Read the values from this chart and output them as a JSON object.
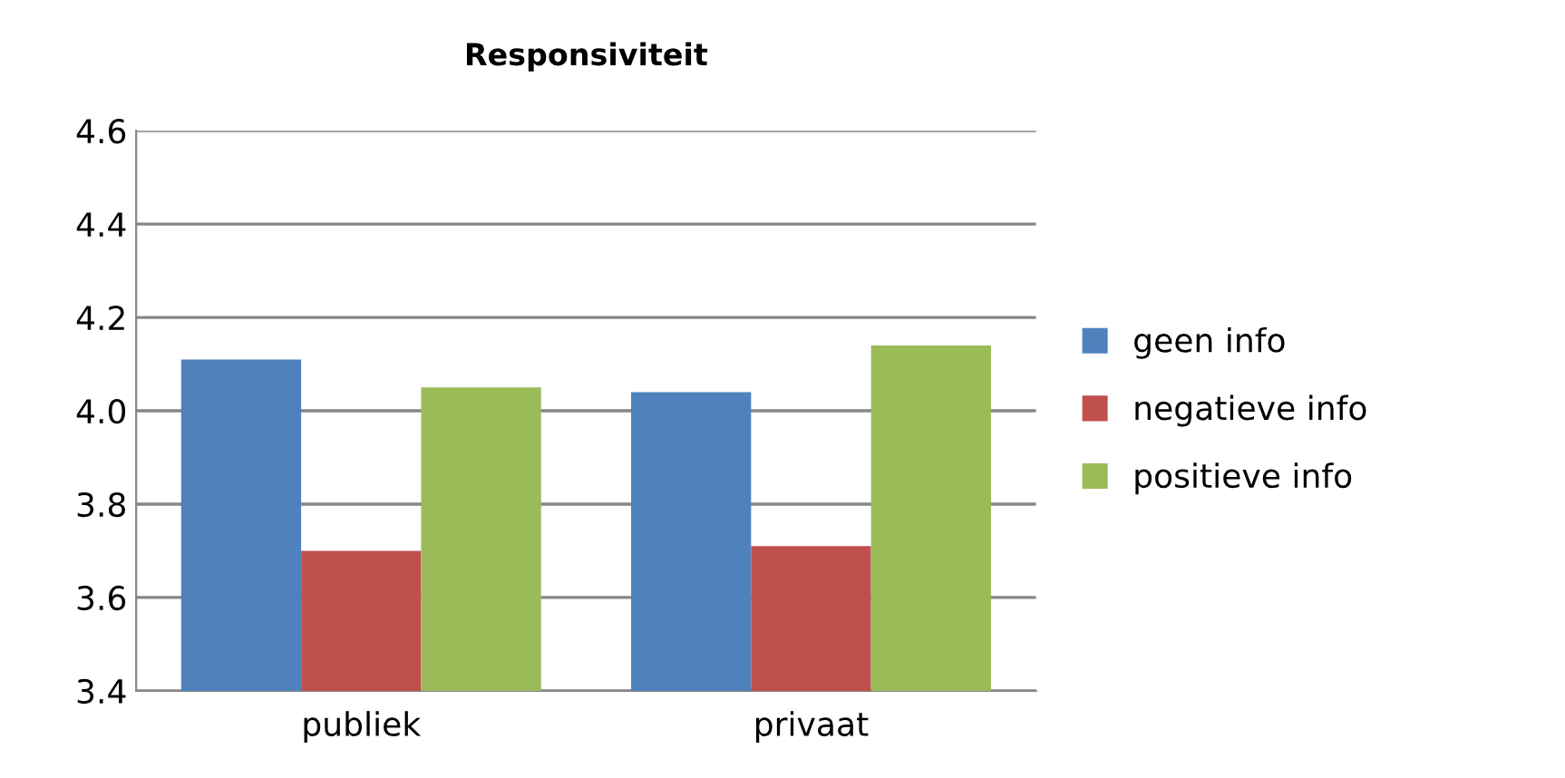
{
  "chart_data": {
    "type": "bar",
    "title": "Responsiviteit",
    "categories": [
      "publiek",
      "privaat"
    ],
    "series": [
      {
        "name": "geen info",
        "color": "#4f81bd",
        "values": [
          4.11,
          4.04
        ]
      },
      {
        "name": "negatieve info",
        "color": "#c0504d",
        "values": [
          3.7,
          3.71
        ]
      },
      {
        "name": "positieve info",
        "color": "#9bbb59",
        "values": [
          4.05,
          4.14
        ]
      }
    ],
    "ylim": [
      3.4,
      4.6
    ],
    "yticks": [
      {
        "value": 3.4,
        "label": "3.4"
      },
      {
        "value": 3.6,
        "label": "3.6"
      },
      {
        "value": 3.8,
        "label": "3.8"
      },
      {
        "value": 4.0,
        "label": "4.0"
      },
      {
        "value": 4.2,
        "label": "4.2"
      },
      {
        "value": 4.4,
        "label": "4.4"
      },
      {
        "value": 4.6,
        "label": "4.6"
      }
    ],
    "grid": "y",
    "legend": "right"
  }
}
